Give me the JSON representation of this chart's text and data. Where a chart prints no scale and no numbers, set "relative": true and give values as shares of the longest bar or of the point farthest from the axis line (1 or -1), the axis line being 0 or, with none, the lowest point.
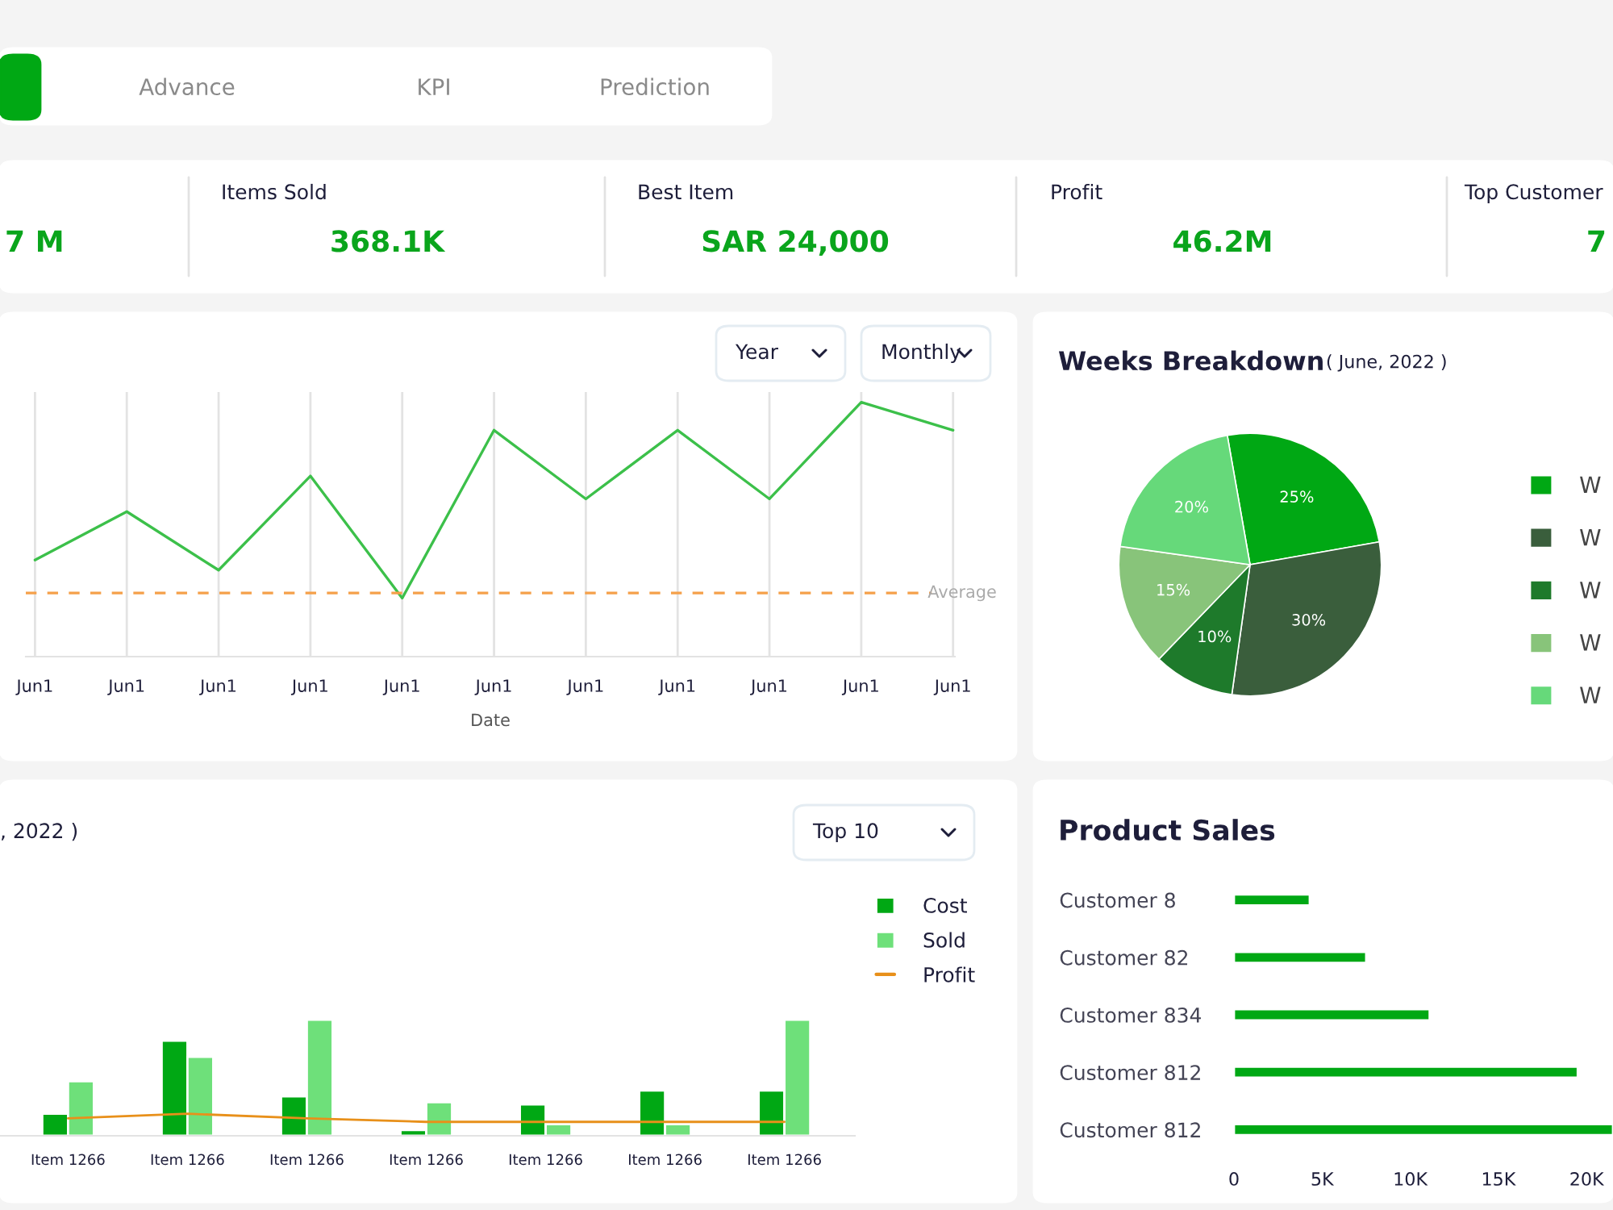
{
  "chart_data": [
    {
      "type": "other",
      "annotations": [
        "Advance",
        "KPI",
        "Prediction",
        "7 M",
        "Items Sold",
        "368.1K",
        "Best Item",
        "SAR 24,000",
        "Profit",
        "46.2M",
        "Top Customer",
        "7"
      ]
    },
    {
      "type": "line",
      "relative": true,
      "xlabel": "Date",
      "categories": [
        "Jun1",
        "Jun1",
        "Jun1",
        "Jun1",
        "Jun1",
        "Jun1",
        "Jun1",
        "Jun1",
        "Jun1",
        "Jun1",
        "Jun1"
      ],
      "series": [
        {
          "color": "#3cc04a",
          "values": [
            0.38,
            0.57,
            0.34,
            0.71,
            0.23,
            0.89,
            0.62,
            0.89,
            0.62,
            1,
            0.89
          ]
        }
      ],
      "ref_lines": [
        {
          "axis": "y",
          "value": 0.25,
          "label": "Average",
          "color": "#f5a04a",
          "line_style": "dashed"
        }
      ],
      "grid": "x",
      "annotations": [
        "Year",
        "Monthly"
      ]
    },
    {
      "type": "pie",
      "title": "Weeks Breakdown",
      "subtitle": "( June, 2022 )",
      "categories": [
        "W",
        "W",
        "W",
        "W",
        "W"
      ],
      "values": [
        25,
        30,
        10,
        15,
        20
      ],
      "colors": [
        "#00a814",
        "#3a5e3c",
        "#1e7a2b",
        "#88c47a",
        "#66d97a"
      ],
      "value_labels": [
        "25%",
        "30%",
        "10%",
        "15%",
        "20%"
      ],
      "legend": "right"
    },
    {
      "type": "bar",
      "relative": true,
      "title": ", 2022 )",
      "categories": [
        "Item 1266",
        "Item 1266",
        "Item 1266",
        "Item 1266",
        "Item 1266",
        "Item 1266",
        "Item 1266"
      ],
      "series": [
        {
          "name": "Cost",
          "color": "#00a814",
          "values": [
            0.19,
            0.82,
            0.34,
            0.05,
            0.27,
            0.39,
            0.39
          ]
        },
        {
          "name": "Sold",
          "color": "#6ee07a",
          "values": [
            0.47,
            0.68,
            1,
            0.29,
            0.1,
            0.1,
            1
          ]
        },
        {
          "name": "Profit",
          "type": "line",
          "color": "#e8901a",
          "values": [
            0.15,
            0.19,
            0.15,
            0.12,
            0.12,
            0.12,
            0.12
          ]
        }
      ],
      "legend": "top right",
      "annotations": [
        "Top 10"
      ]
    },
    {
      "type": "bar",
      "orientation": "horizontal",
      "title": "Product Sales",
      "categories": [
        "Customer 8",
        "Customer 82",
        "Customer 834",
        "Customer 812",
        "Customer 812"
      ],
      "values": [
        4300,
        7500,
        11100,
        19500,
        21500
      ],
      "color": "#00a814",
      "xlim": [
        0,
        21500
      ],
      "xticks": [
        0,
        {
          "value": 5000,
          "label": "5K"
        },
        {
          "value": 10000,
          "label": "10K"
        },
        {
          "value": 15000,
          "label": "15K"
        },
        {
          "value": 20000,
          "label": "20K"
        }
      ]
    }
  ]
}
